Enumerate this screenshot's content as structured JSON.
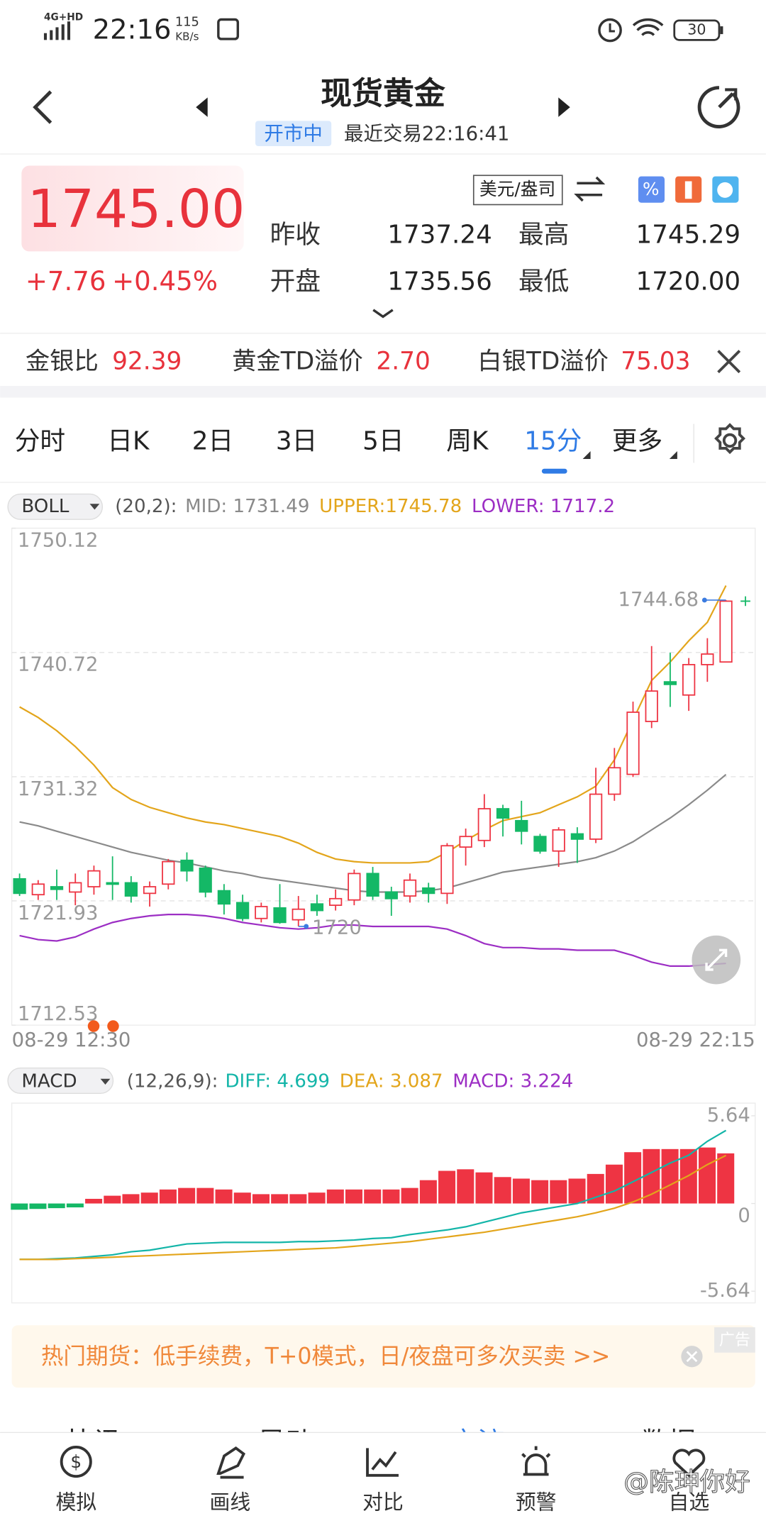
{
  "status_bar": {
    "network": "4G+HD",
    "time": "22:16",
    "speed": "115",
    "speed_unit": "KB/s",
    "battery": "30"
  },
  "header": {
    "title": "现货黄金",
    "status": "开市中",
    "last_trade": "最近交易22:16:41"
  },
  "quote": {
    "price": "1745.00",
    "change": "+7.76",
    "change_percent": "+0.45%",
    "unit": "美元/盎司",
    "fields": [
      {
        "label": "昨收",
        "value": "1737.24"
      },
      {
        "label": "最高",
        "value": "1745.29"
      },
      {
        "label": "开盘",
        "value": "1735.56"
      },
      {
        "label": "最低",
        "value": "1720.00"
      }
    ]
  },
  "spreads": [
    {
      "label": "金银比",
      "value": "92.39"
    },
    {
      "label": "黄金TD溢价",
      "value": "2.70"
    },
    {
      "label": "白银TD溢价",
      "value": "75.03"
    }
  ],
  "tabs": {
    "items": [
      "分时",
      "日K",
      "2日",
      "3日",
      "5日",
      "周K",
      "15分",
      "更多"
    ],
    "active": 6
  },
  "chart_data": [
    {
      "type": "candlestick",
      "indicator": "BOLL",
      "params": "(20,2):",
      "legend": [
        {
          "text": "MID: 1731.49",
          "color": "#8a8a8a"
        },
        {
          "text": "UPPER:1745.78",
          "color": "#e3a51b"
        },
        {
          "text": "LOWER: 1717.2",
          "color": "#9c2ec4"
        }
      ],
      "x_labels": [
        "08-29 12:30",
        "08-29 22:15"
      ],
      "ylim": [
        1712.53,
        1750.12
      ],
      "yticks": [
        1750.12,
        1740.72,
        1731.32,
        1721.93,
        1712.53
      ],
      "grid": true,
      "up_color": "#ee3443",
      "down_color": "#14b866",
      "open": [
        1723.6,
        1722.4,
        1723.0,
        1722.6,
        1723.0,
        1723.3,
        1723.3,
        1722.5,
        1723.2,
        1725.0,
        1724.4,
        1722.7,
        1721.8,
        1720.6,
        1721.4,
        1720.5,
        1721.7,
        1721.6,
        1722.0,
        1724.0,
        1722.6,
        1722.3,
        1722.9,
        1722.5,
        1726.0,
        1726.5,
        1728.9,
        1728.0,
        1726.8,
        1725.7,
        1727.0,
        1726.6,
        1730.0,
        1731.5,
        1735.5,
        1738.5,
        1737.5,
        1739.8,
        1740.0
      ],
      "close": [
        1722.5,
        1723.2,
        1722.8,
        1723.3,
        1724.2,
        1723.2,
        1722.3,
        1723.0,
        1724.9,
        1724.2,
        1722.6,
        1721.7,
        1720.6,
        1721.5,
        1720.3,
        1721.3,
        1721.2,
        1722.1,
        1724.0,
        1722.3,
        1722.1,
        1723.5,
        1722.5,
        1726.1,
        1726.8,
        1728.9,
        1728.2,
        1727.2,
        1725.7,
        1727.3,
        1726.6,
        1730.0,
        1732.0,
        1736.2,
        1737.8,
        1738.3,
        1739.8,
        1740.6,
        1744.6
      ],
      "high": [
        1724.0,
        1723.5,
        1724.3,
        1724.0,
        1724.6,
        1725.3,
        1723.8,
        1723.4,
        1725.1,
        1725.6,
        1724.6,
        1723.2,
        1722.4,
        1721.8,
        1723.2,
        1722.3,
        1722.4,
        1722.8,
        1724.3,
        1724.5,
        1723.0,
        1724.0,
        1723.3,
        1726.3,
        1727.4,
        1730.0,
        1729.2,
        1729.5,
        1727.0,
        1727.5,
        1727.5,
        1732.0,
        1733.5,
        1737.0,
        1741.2,
        1740.7,
        1740.3,
        1741.8,
        1744.68
      ],
      "low": [
        1722.3,
        1722.0,
        1722.0,
        1721.6,
        1722.4,
        1722.0,
        1721.8,
        1721.5,
        1722.8,
        1723.4,
        1722.2,
        1720.9,
        1720.4,
        1720.3,
        1720.2,
        1720.0,
        1720.8,
        1721.2,
        1721.6,
        1722.0,
        1720.8,
        1721.8,
        1721.8,
        1721.7,
        1724.6,
        1726.0,
        1726.8,
        1726.2,
        1725.5,
        1724.5,
        1724.8,
        1726.3,
        1729.5,
        1731.3,
        1735.0,
        1736.6,
        1736.3,
        1738.5,
        1740.0
      ],
      "series": [
        {
          "color": "#8a8a8a",
          "values": [
            1727.9,
            1727.6,
            1727.2,
            1726.8,
            1726.4,
            1726.0,
            1725.6,
            1725.3,
            1725.0,
            1724.8,
            1724.5,
            1724.2,
            1724.0,
            1723.7,
            1723.5,
            1723.3,
            1723.1,
            1722.9,
            1722.7,
            1722.6,
            1722.6,
            1722.6,
            1722.7,
            1722.9,
            1723.3,
            1723.7,
            1724.1,
            1724.3,
            1724.5,
            1724.7,
            1724.9,
            1725.2,
            1725.7,
            1726.4,
            1727.3,
            1728.2,
            1729.2,
            1730.3,
            1731.49
          ]
        },
        {
          "color": "#e3a51b",
          "values": [
            1736.6,
            1735.8,
            1734.8,
            1733.6,
            1732.2,
            1730.5,
            1729.6,
            1729.0,
            1728.6,
            1728.2,
            1727.9,
            1727.7,
            1727.4,
            1727.1,
            1726.8,
            1726.3,
            1725.6,
            1725.1,
            1724.9,
            1724.8,
            1724.8,
            1724.8,
            1724.9,
            1725.6,
            1726.5,
            1727.3,
            1728.0,
            1728.3,
            1728.6,
            1729.2,
            1729.8,
            1730.6,
            1732.6,
            1735.6,
            1738.6,
            1740.0,
            1741.6,
            1743.0,
            1745.78
          ]
        },
        {
          "color": "#9c2ec4",
          "values": [
            1719.3,
            1719.0,
            1718.9,
            1719.2,
            1719.8,
            1720.3,
            1720.6,
            1720.8,
            1720.9,
            1720.9,
            1720.8,
            1720.6,
            1720.3,
            1720.1,
            1719.9,
            1719.8,
            1719.9,
            1720.1,
            1720.1,
            1720.0,
            1720.0,
            1720.0,
            1720.0,
            1719.8,
            1719.3,
            1718.7,
            1718.4,
            1718.4,
            1718.3,
            1718.3,
            1718.2,
            1718.2,
            1718.2,
            1717.8,
            1717.3,
            1717.0,
            1717.0,
            1717.1,
            1717.2
          ]
        }
      ],
      "max": 1744.68,
      "min": 1720
    },
    {
      "type": "macd",
      "indicator": "MACD",
      "params": "(12,26,9):",
      "legend": [
        {
          "text": "DIFF: 4.699",
          "color": "#13b5a8"
        },
        {
          "text": "DEA: 3.087",
          "color": "#e3a51b"
        },
        {
          "text": "MACD: 3.224",
          "color": "#9c2ec4"
        }
      ],
      "ylim": [
        -5.64,
        5.64
      ],
      "yticks": [
        -5.64,
        0,
        5.64
      ],
      "up_color": "#ee3443",
      "down_color": "#14b866",
      "values": [
        -0.4,
        -0.35,
        -0.3,
        -0.25,
        0.3,
        0.5,
        0.6,
        0.7,
        0.9,
        1.0,
        1.0,
        0.9,
        0.7,
        0.6,
        0.6,
        0.6,
        0.7,
        0.9,
        0.9,
        0.9,
        0.9,
        1.0,
        1.5,
        2.1,
        2.2,
        2.0,
        1.7,
        1.6,
        1.5,
        1.5,
        1.6,
        1.9,
        2.5,
        3.3,
        3.5,
        3.5,
        3.5,
        3.6,
        3.224
      ],
      "series": [
        {
          "color": "#13b5a8",
          "values": [
            -3.6,
            -3.6,
            -3.55,
            -3.5,
            -3.4,
            -3.3,
            -3.1,
            -3.0,
            -2.8,
            -2.6,
            -2.55,
            -2.5,
            -2.5,
            -2.5,
            -2.5,
            -2.45,
            -2.45,
            -2.4,
            -2.35,
            -2.25,
            -2.2,
            -2.0,
            -1.85,
            -1.7,
            -1.5,
            -1.2,
            -0.9,
            -0.6,
            -0.4,
            -0.2,
            0.0,
            0.4,
            0.8,
            1.4,
            2.0,
            2.6,
            3.1,
            4.0,
            4.699
          ]
        },
        {
          "color": "#e3a51b",
          "values": [
            -3.6,
            -3.6,
            -3.6,
            -3.55,
            -3.5,
            -3.45,
            -3.4,
            -3.35,
            -3.3,
            -3.25,
            -3.2,
            -3.15,
            -3.1,
            -3.05,
            -3.0,
            -2.95,
            -2.9,
            -2.85,
            -2.75,
            -2.65,
            -2.55,
            -2.45,
            -2.3,
            -2.15,
            -2.0,
            -1.85,
            -1.65,
            -1.45,
            -1.25,
            -1.05,
            -0.85,
            -0.6,
            -0.3,
            0.1,
            0.6,
            1.2,
            1.8,
            2.5,
            3.087
          ]
        }
      ]
    }
  ],
  "ad": {
    "text": "热门期货：低手续费，T+0模式，日/夜盘可多次买卖 >>",
    "tag": "广告"
  },
  "sections": [
    "快讯",
    "异动",
    "交流",
    "数据"
  ],
  "nav": [
    "模拟",
    "画线",
    "对比",
    "预警",
    "自选"
  ],
  "watermark": "@陈珅你好"
}
